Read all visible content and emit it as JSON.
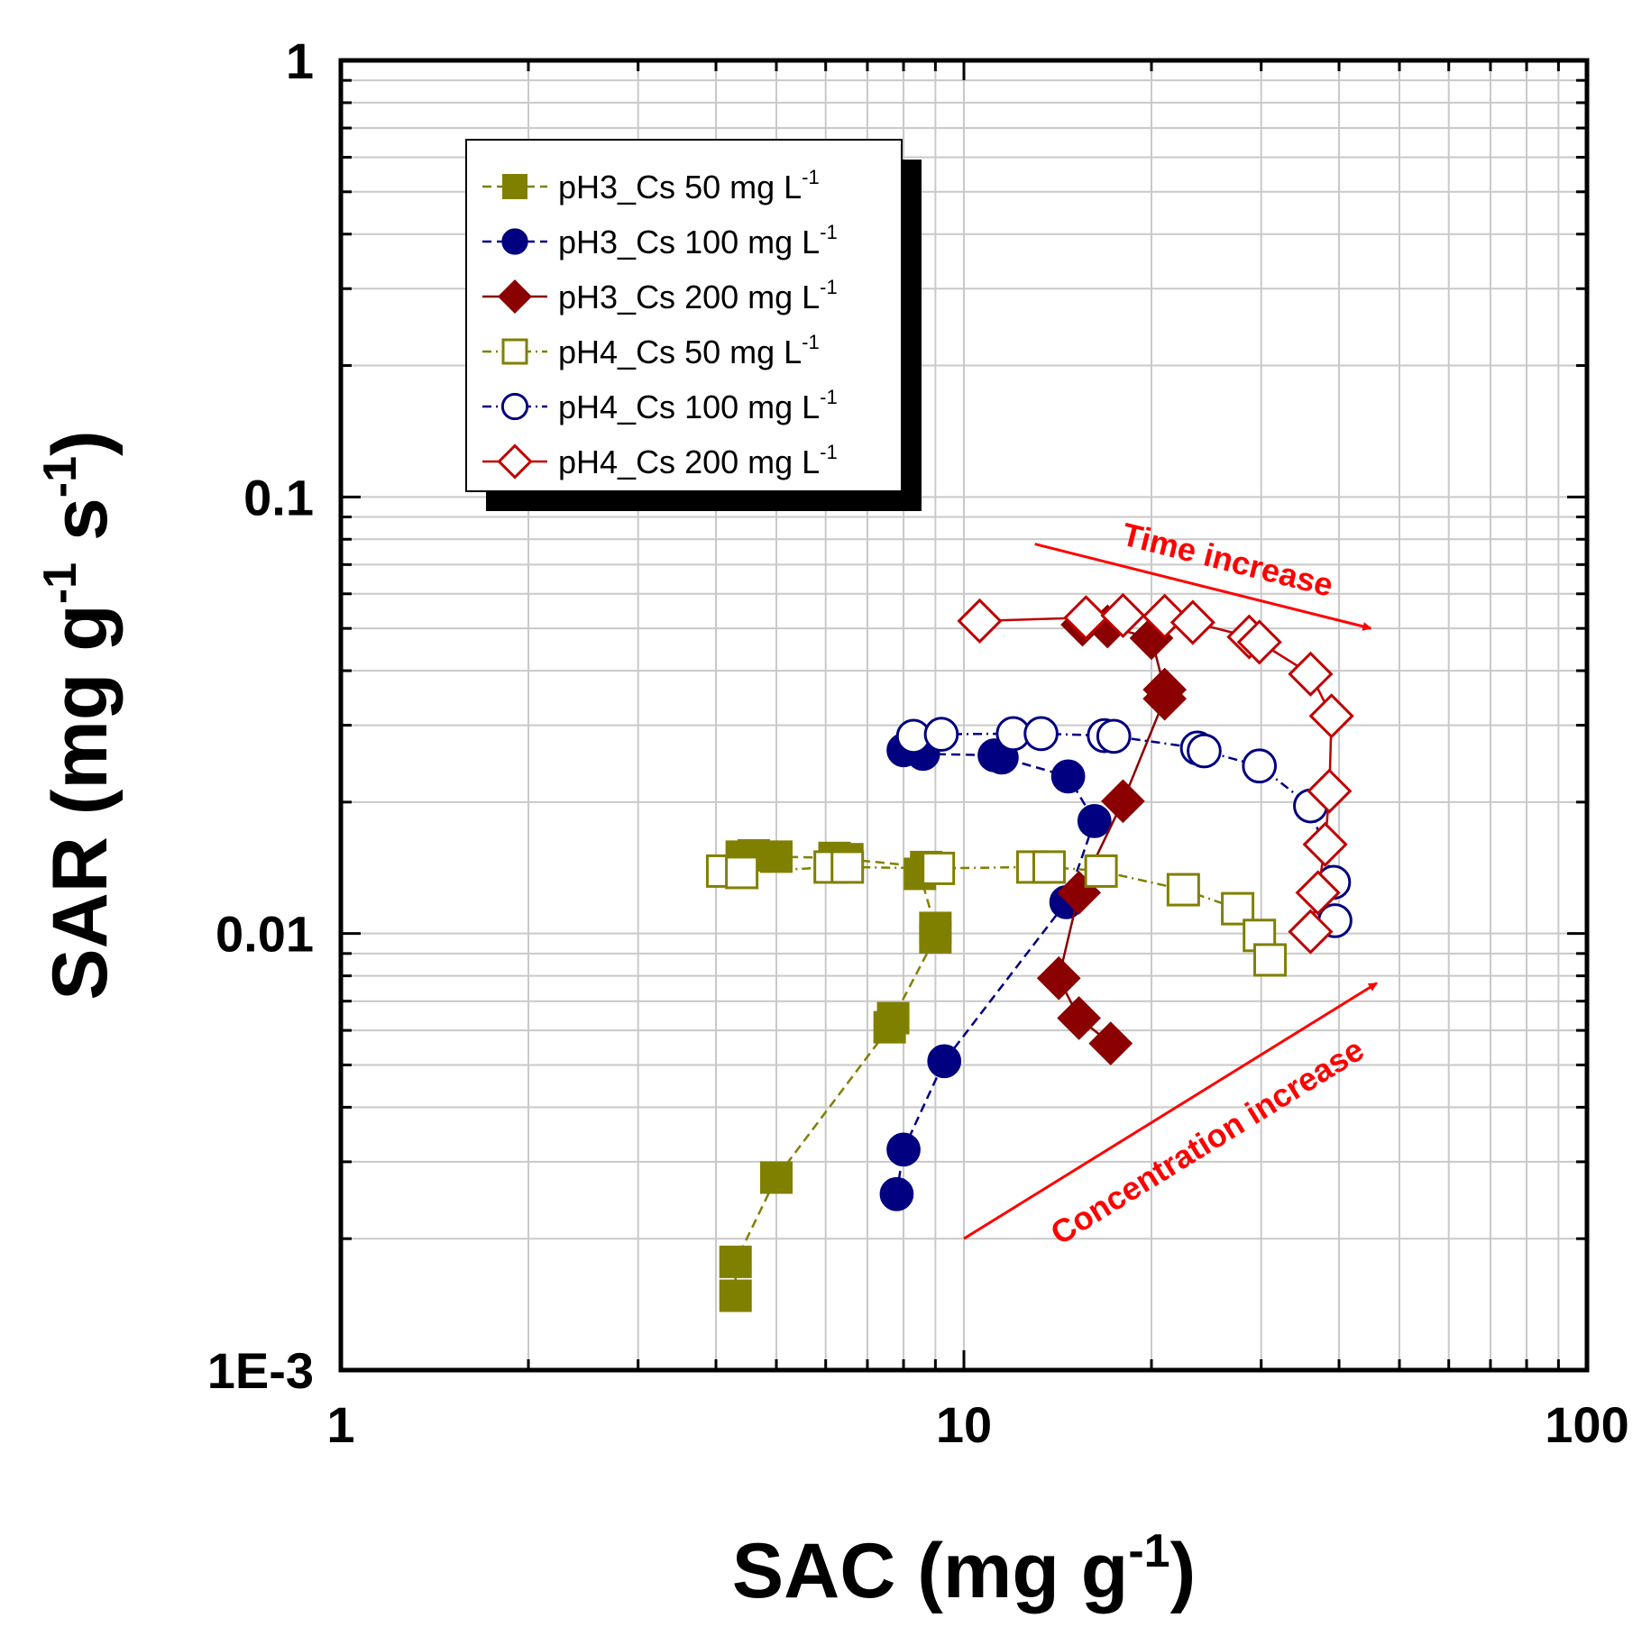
{
  "chart_data": {
    "type": "scatter",
    "xscale": "log",
    "yscale": "log",
    "xlim": [
      1,
      100
    ],
    "ylim": [
      0.001,
      1
    ],
    "xlabel": {
      "main": "SAC (mg g",
      "sup": "-1",
      "end": ")"
    },
    "ylabel": {
      "main": "SAR (mg g",
      "sup1": "-1",
      "mid": " s",
      "sup2": "-1",
      "end": ")"
    },
    "xticks": [
      "1",
      "10",
      "100"
    ],
    "yticks": [
      "1E-3",
      "0.01",
      "0.1",
      "1"
    ],
    "grid": true,
    "legend_position": "top-left",
    "series": [
      {
        "name": "pH3_Cs 50 mg L",
        "unit_sup": "-1",
        "marker": "square",
        "filled": true,
        "color": "#808000",
        "style": "dash-line",
        "x": [
          4.3,
          4.3,
          5.0,
          7.6,
          7.7,
          9.0,
          9.0,
          8.5,
          8.7,
          6.5,
          6.2,
          5.0,
          4.6,
          4.4
        ],
        "y": [
          0.00148,
          0.00177,
          0.00276,
          0.0061,
          0.0064,
          0.0098,
          0.0103,
          0.0137,
          0.0142,
          0.0148,
          0.0149,
          0.015,
          0.0151,
          0.015
        ]
      },
      {
        "name": "pH3_Cs 100 mg L",
        "unit_sup": "-1",
        "marker": "circle",
        "filled": true,
        "color": "#000080",
        "style": "dash-line",
        "x": [
          7.8,
          8.0,
          9.3,
          14.6,
          16.2,
          14.7,
          11.5,
          11.2,
          8.6,
          8.0
        ],
        "y": [
          0.00253,
          0.0032,
          0.0051,
          0.0118,
          0.0181,
          0.0229,
          0.0253,
          0.0256,
          0.0258,
          0.0263
        ]
      },
      {
        "name": "pH3_Cs 200 mg L",
        "unit_sup": "-1",
        "marker": "diamond",
        "filled": true,
        "color": "#8b0000",
        "style": "solid-line",
        "x": [
          17.2,
          15.3,
          14.2,
          15.3,
          18.0,
          21.0,
          21.0,
          20.0,
          17.0,
          15.5
        ],
        "y": [
          0.0056,
          0.0064,
          0.0079,
          0.0124,
          0.0201,
          0.0345,
          0.0362,
          0.0475,
          0.0505,
          0.051
        ]
      },
      {
        "name": "pH4_Cs 50 mg L",
        "unit_sup": "-1",
        "marker": "square",
        "filled": false,
        "color": "#808000",
        "style": "dash-dot-line",
        "x": [
          4.1,
          4.4,
          6.1,
          6.5,
          9.1,
          12.9,
          13.7,
          16.6,
          22.5,
          27.5,
          29.8,
          31.0
        ],
        "y": [
          0.0139,
          0.0138,
          0.0142,
          0.0142,
          0.0141,
          0.0142,
          0.0142,
          0.0139,
          0.0126,
          0.0114,
          0.0099,
          0.0087
        ]
      },
      {
        "name": "pH4_Cs 100 mg L",
        "unit_sup": "-1",
        "marker": "circle",
        "filled": false,
        "color": "#000080",
        "style": "dash-dot-line",
        "x": [
          8.3,
          9.2,
          12.0,
          13.3,
          16.8,
          17.4,
          23.7,
          24.3,
          29.8,
          36.0,
          39.2,
          39.4
        ],
        "y": [
          0.0283,
          0.0286,
          0.0287,
          0.0287,
          0.0284,
          0.0283,
          0.0266,
          0.0262,
          0.0242,
          0.0196,
          0.0131,
          0.0107
        ]
      },
      {
        "name": "pH4_Cs 200 mg L",
        "unit_sup": "-1",
        "marker": "diamond",
        "filled": false,
        "color": "#c00000",
        "style": "solid-line",
        "x": [
          10.6,
          15.7,
          18.0,
          21.0,
          23.3,
          28.7,
          29.8,
          36.0,
          38.9,
          38.6,
          38.0,
          37.0,
          36.0
        ],
        "y": [
          0.052,
          0.0529,
          0.0535,
          0.0533,
          0.0516,
          0.0478,
          0.0465,
          0.0393,
          0.0315,
          0.0212,
          0.016,
          0.0124,
          0.0101
        ]
      }
    ],
    "annotations": [
      {
        "text": "Time increase",
        "color": "#ff0000",
        "x0": 13.0,
        "y0": 0.078,
        "x1": 45.0,
        "y1": 0.05
      },
      {
        "text": "Concentration increase",
        "color": "#ff0000",
        "x0": 10.0,
        "y0": 0.002,
        "x1": 46.0,
        "y1": 0.0077
      }
    ]
  }
}
